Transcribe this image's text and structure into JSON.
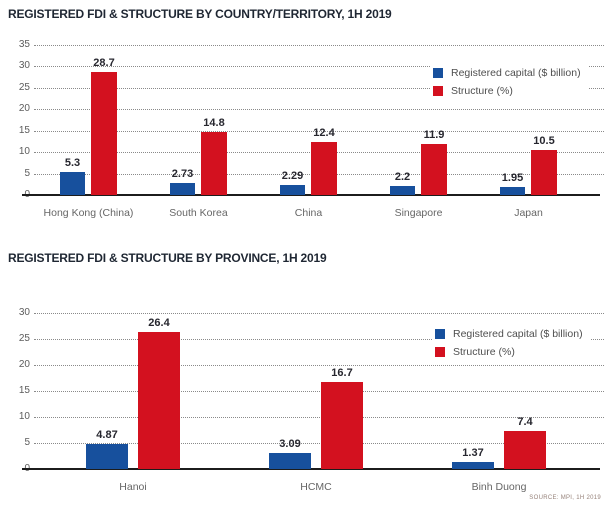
{
  "source_note": "SOURCE: MPI, 1H 2019",
  "colors": {
    "capital_blue": "#17509d",
    "structure_red": "#d3111f",
    "title_navy": "#1f2733",
    "axis_black": "#1c1c1c",
    "grid_gray": "#8a8a8a",
    "tick_gray": "#5c5c5c"
  },
  "chart_data": [
    {
      "type": "bar",
      "title": "REGISTERED FDI & STRUCTURE BY COUNTRY/TERRITORY, 1H 2019",
      "categories": [
        "Hong Kong (China)",
        "South Korea",
        "China",
        "Singapore",
        "Japan"
      ],
      "series": [
        {
          "name": "Registered capital ($ billion)",
          "color": "#17509d",
          "values": [
            5.3,
            2.73,
            2.29,
            2.2,
            1.95
          ]
        },
        {
          "name": "Structure (%)",
          "color": "#d3111f",
          "values": [
            28.7,
            14.8,
            12.4,
            11.9,
            10.5
          ]
        }
      ],
      "ylim": [
        0,
        35
      ],
      "ytick_step": 5,
      "grid": true,
      "legend_position": "inside-top-right"
    },
    {
      "type": "bar",
      "title": "REGISTERED FDI & STRUCTURE BY PROVINCE, 1H 2019",
      "categories": [
        "Hanoi",
        "HCMC",
        "Binh Duong"
      ],
      "series": [
        {
          "name": "Registered capital ($ billion)",
          "color": "#17509d",
          "values": [
            4.87,
            3.09,
            1.37
          ]
        },
        {
          "name": "Structure (%)",
          "color": "#d3111f",
          "values": [
            26.4,
            16.7,
            7.4
          ]
        }
      ],
      "ylim": [
        0,
        30
      ],
      "ytick_step": 5,
      "grid": true,
      "legend_position": "inside-top-right"
    }
  ]
}
